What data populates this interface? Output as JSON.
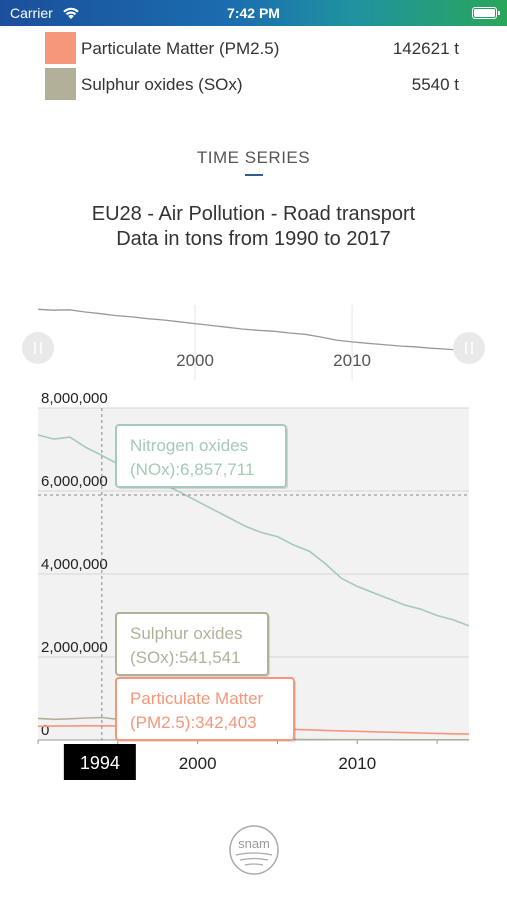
{
  "status_bar": {
    "carrier": "Carrier",
    "time": "7:42 PM"
  },
  "legend": [
    {
      "name": "Particulate Matter (PM2.5)",
      "value": "142621 t",
      "color": "#f4977a"
    },
    {
      "name": "Sulphur oxides (SOx)",
      "value": "5540 t",
      "color": "#b3b09a"
    }
  ],
  "section": {
    "title": "TIME SERIES"
  },
  "chart_title": {
    "line1": "EU28 - Air Pollution - Road transport",
    "line2": "Data in tons from 1990 to 2017"
  },
  "logo": {
    "text": "snam"
  },
  "chart_data": {
    "type": "line",
    "title": "EU28 - Air Pollution - Road transport",
    "subtitle": "Data in tons from 1990 to 2017",
    "xlim": [
      1990,
      2017
    ],
    "ylim": [
      0,
      8000000
    ],
    "y_ticks": [
      0,
      2000000,
      4000000,
      6000000,
      8000000
    ],
    "y_tick_labels": [
      "0",
      "2,000,000",
      "4,000,000",
      "6,000,000",
      "8,000,000"
    ],
    "x_ticks": [
      2000,
      2010
    ],
    "x_tick_labels": [
      "2000",
      "2010"
    ],
    "grid": true,
    "crosshair": {
      "x": 1994,
      "x_label": "1994",
      "y": 6857711
    },
    "x": [
      1990,
      1991,
      1992,
      1993,
      1994,
      1995,
      1996,
      1997,
      1998,
      1999,
      2000,
      2001,
      2002,
      2003,
      2004,
      2005,
      2006,
      2007,
      2008,
      2009,
      2010,
      2011,
      2012,
      2013,
      2014,
      2015,
      2016,
      2017
    ],
    "series": [
      {
        "name": "Nitrogen oxides (NOx)",
        "color": "#a3cbb7",
        "tooltip": "Nitrogen oxides (NOx):6,857,711",
        "values": [
          7350000,
          7250000,
          7300000,
          7050000,
          6857711,
          6650000,
          6500000,
          6300000,
          6150000,
          5950000,
          5750000,
          5550000,
          5350000,
          5150000,
          5000000,
          4900000,
          4700000,
          4550000,
          4250000,
          3900000,
          3700000,
          3550000,
          3400000,
          3250000,
          3150000,
          3000000,
          2900000,
          2750000
        ]
      },
      {
        "name": "Sulphur oxides (SOx)",
        "color": "#b3b09a",
        "tooltip": "Sulphur oxides (SOx):541,541",
        "values": [
          520000,
          500000,
          510000,
          530000,
          541541,
          500000,
          440000,
          360000,
          280000,
          200000,
          130000,
          80000,
          55000,
          40000,
          30000,
          20000,
          15000,
          12000,
          10000,
          8000,
          7500,
          7000,
          6500,
          6000,
          5900,
          5800,
          5600,
          5540
        ]
      },
      {
        "name": "Particulate Matter (PM2.5)",
        "color": "#f4977a",
        "tooltip": "Particulate Matter (PM2.5):342,403",
        "values": [
          330000,
          335000,
          340000,
          341000,
          342403,
          340000,
          335000,
          330000,
          325000,
          318000,
          310000,
          300000,
          290000,
          282000,
          275000,
          265000,
          255000,
          245000,
          232000,
          220000,
          210000,
          198000,
          188000,
          178000,
          168000,
          158000,
          150000,
          142621
        ]
      }
    ]
  }
}
